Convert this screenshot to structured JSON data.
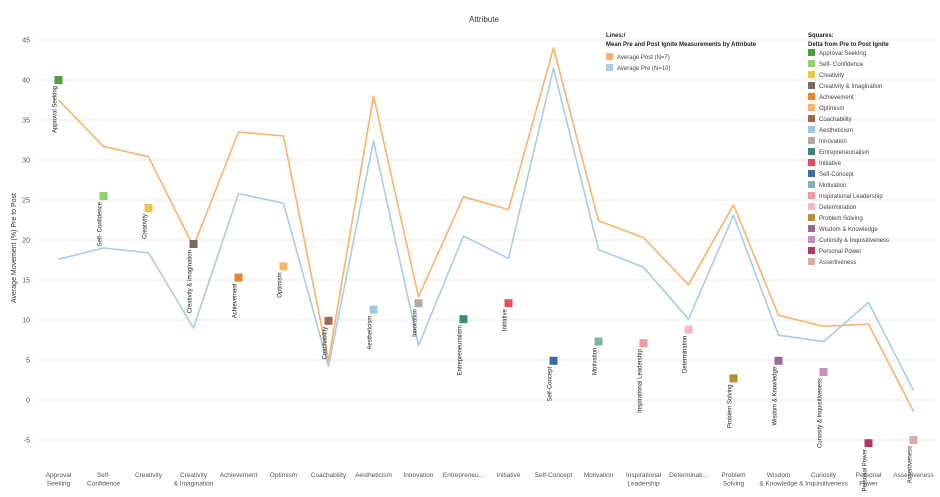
{
  "chart_data": {
    "type": "line",
    "title": "Attribute",
    "ylabel": "Average Movement (%) Pre to Post",
    "xlabel": "",
    "ylim": [
      -8,
      46
    ],
    "yticks": [
      -5,
      0,
      5,
      10,
      15,
      20,
      25,
      30,
      35,
      40,
      45
    ],
    "grid": true,
    "categories": [
      "Approval Seeking",
      "Self- Confidence",
      "Creativity",
      "Creativity & Imagination",
      "Achievement",
      "Optimism",
      "Coachability",
      "Aestheticism",
      "Innovation",
      "Entrepreneurialism",
      "Initiative",
      "Self-Concept",
      "Motivation",
      "Inspirational Leadership",
      "Determination",
      "Problem Solving",
      "Wisdom & Knowledge",
      "Curiosity & Inquisitiveness",
      "Personal Power",
      "Assertiveness"
    ],
    "axis_labels": [
      "Approval Seeking",
      "Self- Confidence",
      "Creativity",
      "Creativity & Imagination",
      "Achievement",
      "Optimism",
      "Coachability",
      "Aestheticism",
      "Innovation",
      "Entrepreneu...",
      "Initiative",
      "Self-Concept",
      "Motivation",
      "Inspirational Leadership",
      "Determinati...",
      "Problem Solving",
      "Wisdom & Knowledge",
      "Curiosity & Inquisitiveness",
      "Personal Power",
      "Assertiveness"
    ],
    "series": [
      {
        "name": "Average Post (N=7)",
        "color": "#f9b36b",
        "values": [
          37.5,
          31.7,
          30.4,
          19.2,
          33.5,
          33.0,
          4.9,
          38.0,
          12.9,
          25.4,
          23.8,
          44.0,
          22.4,
          20.3,
          14.4,
          24.4,
          10.6,
          9.2,
          9.5,
          -1.4
        ]
      },
      {
        "name": "Average Pre (N=10)",
        "color": "#a8cde6",
        "values": [
          17.6,
          19.0,
          18.4,
          9.0,
          25.8,
          24.6,
          4.2,
          32.4,
          6.8,
          20.5,
          17.7,
          41.5,
          18.8,
          16.6,
          10.1,
          23.1,
          8.1,
          7.3,
          12.2,
          1.2
        ]
      }
    ],
    "squares": {
      "name": "Delta from Pre to Post Ignite",
      "values": [
        40.0,
        25.5,
        24.0,
        19.5,
        15.3,
        16.7,
        9.9,
        11.3,
        12.1,
        10.1,
        12.1,
        4.9,
        7.3,
        7.1,
        8.8,
        2.7,
        4.9,
        3.5,
        -5.4,
        -5.0
      ],
      "colors": [
        "#4e9f3d",
        "#8fd16a",
        "#e8c84a",
        "#7b6a63",
        "#e8862c",
        "#f7b56b",
        "#9c6b4e",
        "#9ec9e2",
        "#b5aaa3",
        "#3a8a7c",
        "#e0505a",
        "#3e6aa5",
        "#7fb3b0",
        "#f29aa0",
        "#f4b6c8",
        "#b7902b",
        "#9c6b94",
        "#c990bf",
        "#b13a63",
        "#d4b0a3"
      ]
    },
    "legend_lines": {
      "title_line1": "Lines:/",
      "title_line2": "Mean Pre and Post Ignite Measurements by Attribute",
      "placement": "top-right"
    },
    "legend_squares": {
      "title_line1": "Squares:",
      "title_line2": "Delta from Pre to Post Ignite",
      "placement": "right"
    }
  }
}
